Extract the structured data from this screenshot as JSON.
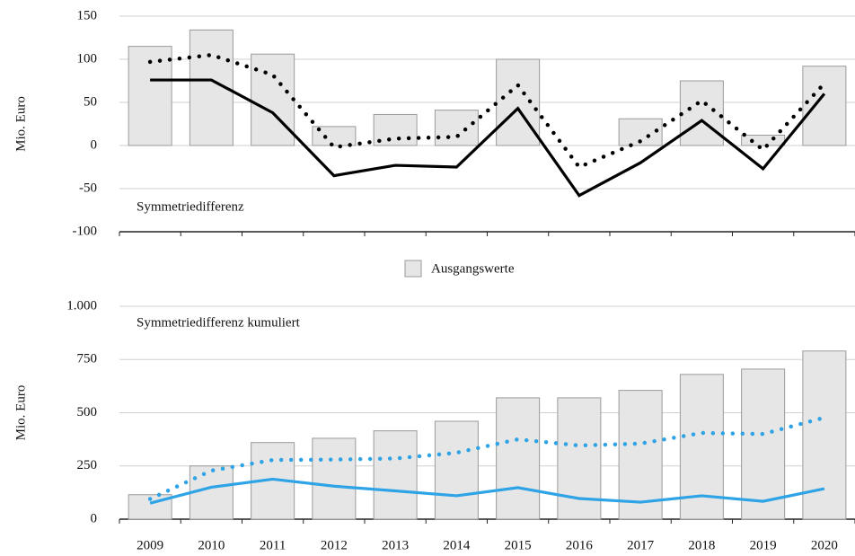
{
  "chart_data": [
    {
      "type": "bar",
      "annotation": "Symmetriedifferenz",
      "ylabel": "Mio. Euro",
      "ylim": [
        -100,
        150
      ],
      "yticks": [
        -100,
        -50,
        0,
        50,
        100,
        150
      ],
      "grid": true,
      "series": [
        {
          "name": "Ausgangswerte",
          "kind": "bar",
          "color": "#e6e6e6",
          "values": [
            115,
            134,
            106,
            22,
            36,
            41,
            100,
            0,
            31,
            75,
            12,
            92
          ]
        },
        {
          "kind": "line",
          "color": "#000000",
          "dashed": false,
          "values": [
            76,
            76,
            38,
            -35,
            -23,
            -25,
            43,
            -58,
            -20,
            29,
            -27,
            60
          ]
        },
        {
          "kind": "line",
          "color": "#000000",
          "dashed": true,
          "values": [
            97,
            105,
            82,
            -2,
            8,
            10,
            70,
            -25,
            5,
            52,
            -5,
            72
          ]
        }
      ]
    },
    {
      "type": "bar",
      "annotation": "Symmetriedifferenz kumuliert",
      "ylabel": "Mio. Euro",
      "categories": [
        "2009",
        "2010",
        "2011",
        "2012",
        "2013",
        "2014",
        "2015",
        "2016",
        "2017",
        "2018",
        "2019",
        "2020"
      ],
      "ylim": [
        0,
        1000
      ],
      "yticks": [
        0,
        250,
        500,
        750,
        {
          "value": 1000,
          "label": "1.000"
        }
      ],
      "grid": true,
      "series": [
        {
          "kind": "bar",
          "color": "#e6e6e6",
          "values": [
            115,
            250,
            360,
            380,
            415,
            460,
            570,
            570,
            605,
            680,
            705,
            790
          ]
        },
        {
          "kind": "line",
          "color": "#2ea3e6",
          "dashed": false,
          "values": [
            75,
            150,
            188,
            155,
            133,
            110,
            148,
            97,
            80,
            110,
            84,
            143
          ]
        },
        {
          "kind": "line",
          "color": "#2ea3e6",
          "dashed": true,
          "values": [
            95,
            228,
            278,
            280,
            285,
            312,
            375,
            346,
            355,
            405,
            400,
            477
          ]
        }
      ]
    }
  ]
}
